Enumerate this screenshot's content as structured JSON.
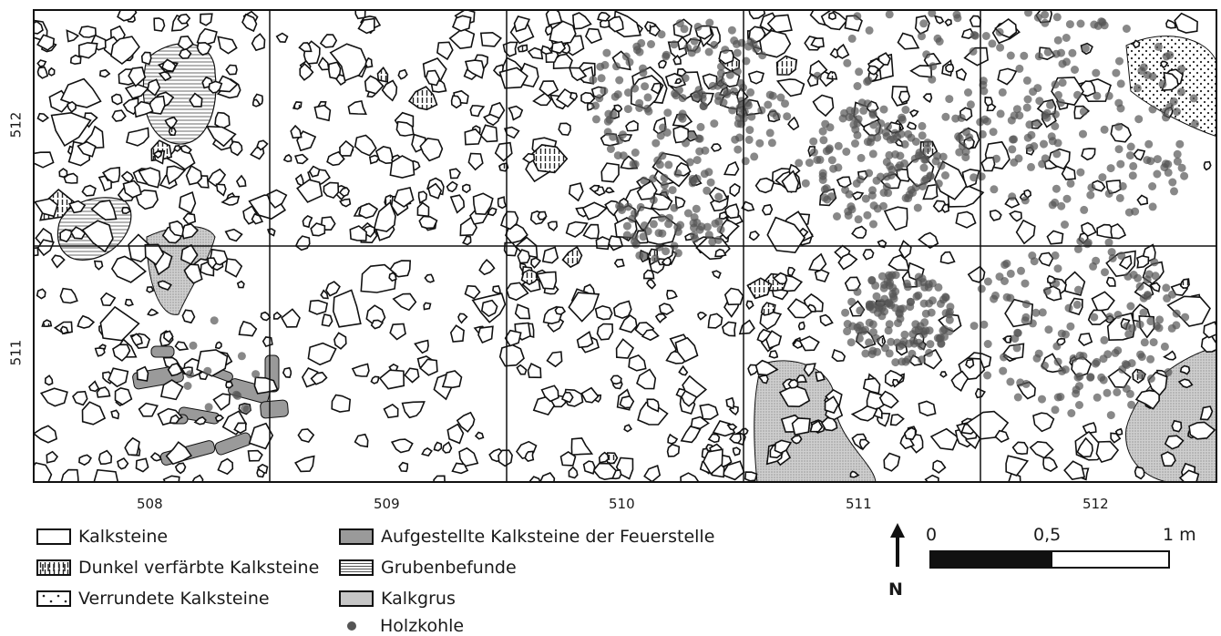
{
  "axes": {
    "x_labels": [
      "508",
      "509",
      "510",
      "511",
      "512"
    ],
    "y_labels": [
      "512",
      "511"
    ]
  },
  "legend": [
    {
      "key": "kalksteine",
      "label": "Kalksteine"
    },
    {
      "key": "dunkel",
      "label": "Dunkel verfärbte Kalksteine"
    },
    {
      "key": "verrundet",
      "label": "Verrundete Kalksteine"
    },
    {
      "key": "aufgestellt",
      "label": "Aufgestellte Kalksteine der Feuerstelle"
    },
    {
      "key": "gruben",
      "label": "Grubenbefunde"
    },
    {
      "key": "kalkgrus",
      "label": "Kalkgrus"
    },
    {
      "key": "holzkohle",
      "label": "Holzkohle"
    }
  ],
  "scale_bar": {
    "labels": [
      "0",
      "0,5",
      "1 m"
    ]
  },
  "north_arrow": {
    "label": "N"
  },
  "colors": {
    "stone_outline": "#111111",
    "charcoal": "#555555",
    "feuerstelle": "#9a9a9a",
    "kalkgrus": "#bdbdbd"
  }
}
